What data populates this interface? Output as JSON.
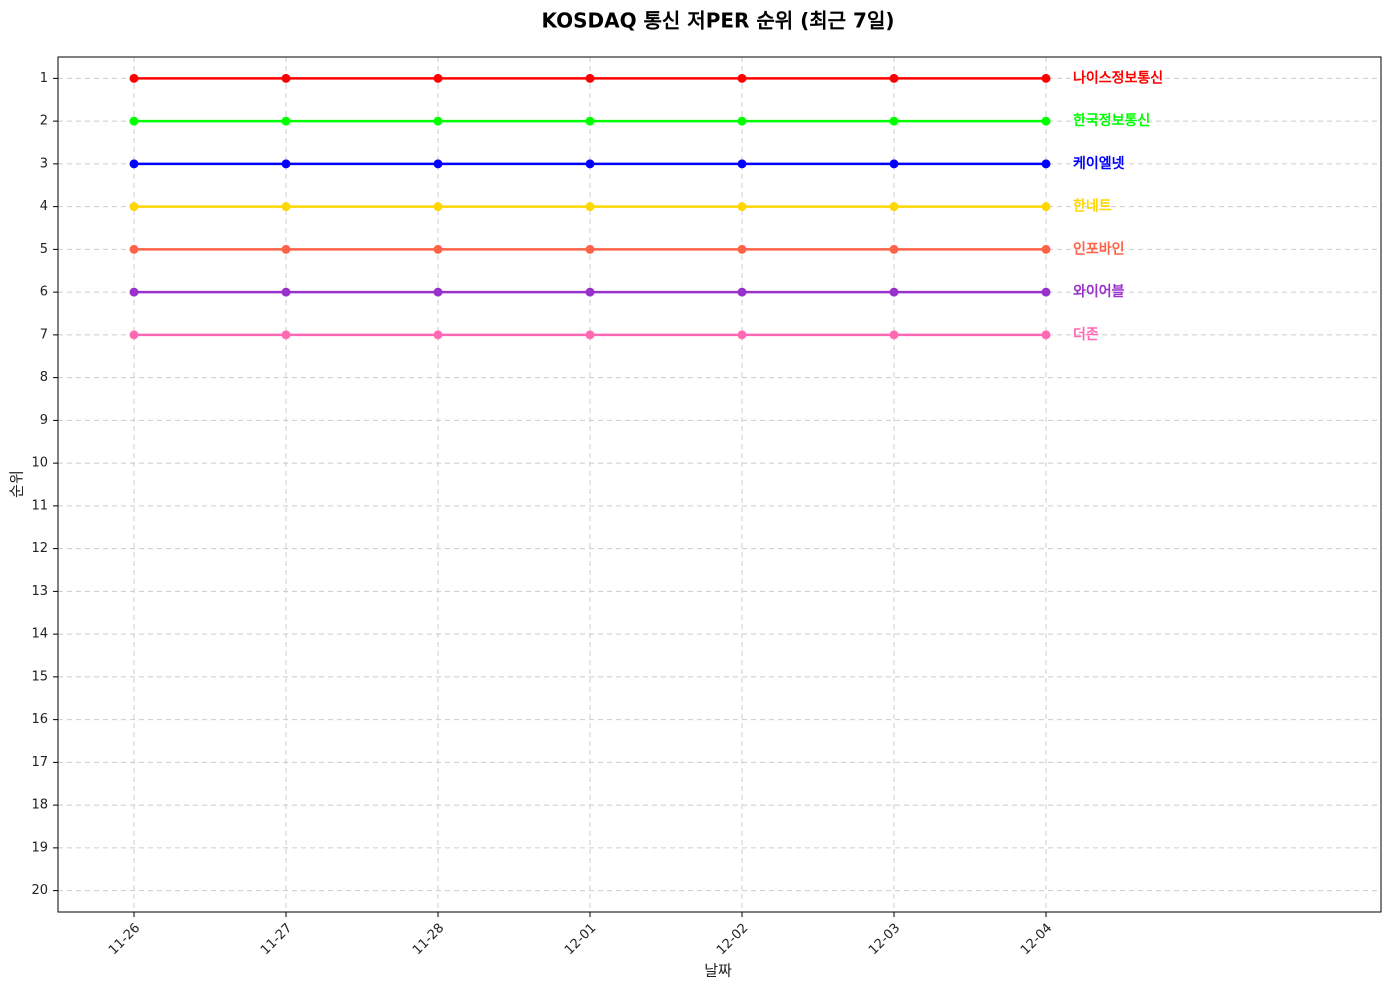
{
  "chart_data": {
    "type": "line",
    "title": "KOSDAQ 통신 저PER 순위 (최근 7일)",
    "x_label": "날짜",
    "y_label": "순위",
    "categories": [
      "11-26",
      "11-27",
      "11-28",
      "12-01",
      "12-02",
      "12-03",
      "12-04"
    ],
    "series": [
      {
        "name": "나이스정보통신",
        "color": "#ff0000",
        "values": [
          1,
          1,
          1,
          1,
          1,
          1,
          1
        ]
      },
      {
        "name": "한국정보통신",
        "color": "#00ff00",
        "values": [
          2,
          2,
          2,
          2,
          2,
          2,
          2
        ]
      },
      {
        "name": "케이엘넷",
        "color": "#0000ff",
        "values": [
          3,
          3,
          3,
          3,
          3,
          3,
          3
        ]
      },
      {
        "name": "한네트",
        "color": "#ffd700",
        "values": [
          4,
          4,
          4,
          4,
          4,
          4,
          4
        ]
      },
      {
        "name": "인포바인",
        "color": "#ff6347",
        "values": [
          5,
          5,
          5,
          5,
          5,
          5,
          5
        ]
      },
      {
        "name": "와이어블",
        "color": "#9932cc",
        "values": [
          6,
          6,
          6,
          6,
          6,
          6,
          6
        ]
      },
      {
        "name": "더존",
        "color": "#ff69b4",
        "values": [
          7,
          7,
          7,
          7,
          7,
          7,
          7
        ]
      }
    ],
    "ylim": [
      20.5,
      0.5
    ],
    "yticks": [
      1,
      2,
      3,
      4,
      5,
      6,
      7,
      8,
      9,
      10,
      11,
      12,
      13,
      14,
      15,
      16,
      17,
      18,
      19,
      20
    ],
    "grid": true
  }
}
